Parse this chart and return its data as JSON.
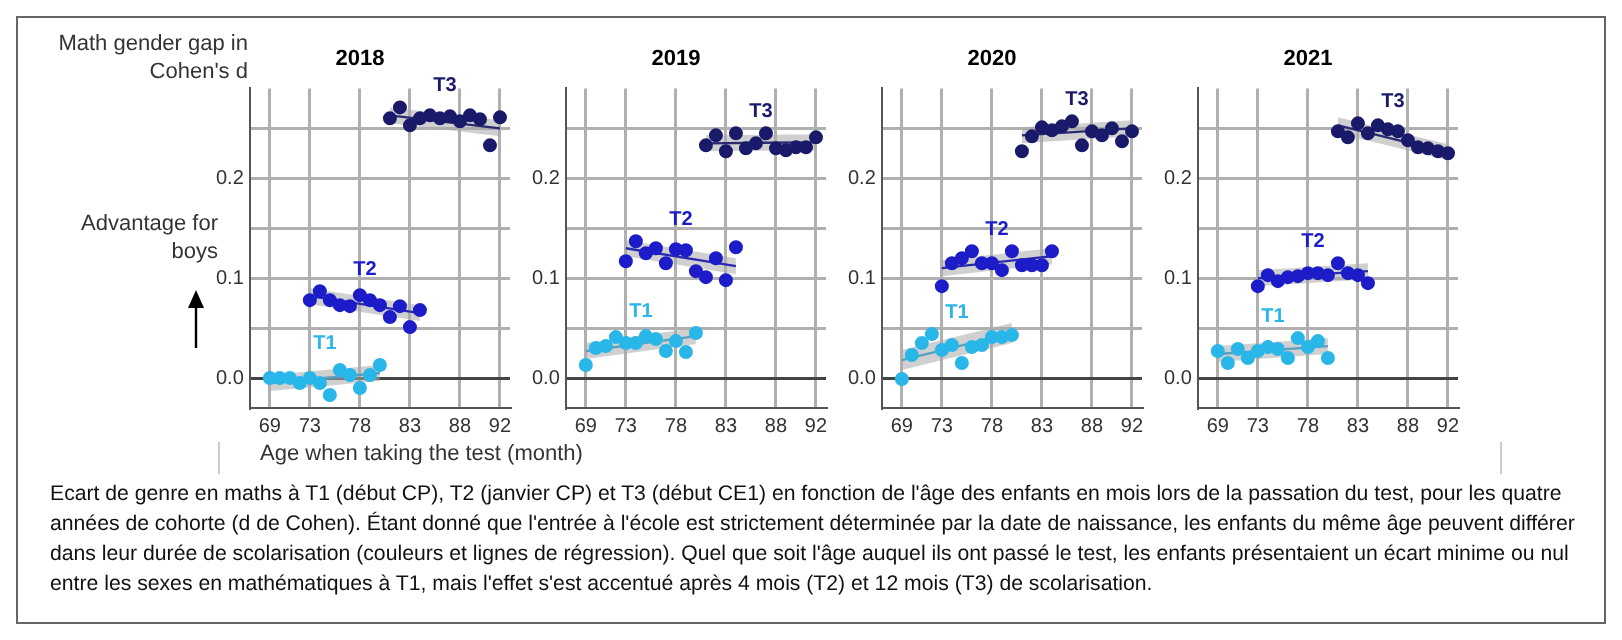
{
  "chart_data": [
    {
      "type": "scatter",
      "title": "2018",
      "ylabel": "Math gender gap in Cohen's d",
      "xlabel": "Age when taking the test (month)",
      "annotations": [
        "Advantage for boys",
        "Ecart de genre en maths à T1 (début CP), T2 (janvier CP) et T3 (début CE1) en fonction de l'âge des enfants en mois lors de la passation du test, pour les quatre années de cohorte (d de Cohen). Étant donné que l'entrée à l'école est strictement déterminée par la date de naissance, les enfants du même âge peuvent différer dans leur durée de scolarisation (couleurs et lignes de régression). Quel que soit l'âge auquel ils ont passé le test, les enfants présentaient un écart minime ou nul entre les sexes en mathématiques à T1, mais l'effet s'est accentué après 4 mois (T2) et 12 mois (T3) de scolarisation."
      ],
      "xlim": [
        67,
        93
      ],
      "ylim": [
        -0.03,
        0.29
      ],
      "xticks": [
        69,
        73,
        78,
        83,
        88,
        92
      ],
      "yticks": [
        {
          "value": 0,
          "label": "0.0"
        },
        {
          "value": 0.05,
          "label": null
        },
        {
          "value": 0.1,
          "label": "0.1"
        },
        {
          "value": 0.15,
          "label": null
        },
        {
          "value": 0.2,
          "label": "0.2"
        },
        {
          "value": 0.25,
          "label": null
        }
      ],
      "grid": true,
      "marker": "circle",
      "series": [
        {
          "type": "line",
          "marker": "none",
          "color": "#5a9fc0",
          "x": [
            69,
            80
          ],
          "values": [
            -0.005,
            0.005
          ],
          "lower": [
            -0.013,
            -0.003
          ],
          "upper": [
            0.003,
            0.013
          ]
        },
        {
          "type": "line",
          "marker": "none",
          "color": "#2a2ab0",
          "x": [
            73,
            84
          ],
          "values": [
            0.082,
            0.065
          ],
          "lower": [
            0.074,
            0.057
          ],
          "upper": [
            0.09,
            0.073
          ]
        },
        {
          "type": "line",
          "marker": "none",
          "color": "#2a2a70",
          "x": [
            81,
            92
          ],
          "values": [
            0.263,
            0.25
          ],
          "lower": [
            0.255,
            0.242
          ],
          "upper": [
            0.271,
            0.258
          ]
        },
        {
          "name": "T1",
          "color": "#29b6e8",
          "x": [
            69,
            70,
            71,
            72,
            73,
            74,
            75,
            76,
            77,
            78,
            79,
            80
          ],
          "values": [
            0.0,
            0.0,
            0.0,
            -0.005,
            0.0,
            -0.005,
            -0.017,
            0.008,
            0.003,
            -0.01,
            0.003,
            0.013
          ]
        },
        {
          "name": "T2",
          "color": "#1c1cc8",
          "x": [
            73,
            74,
            75,
            76,
            77,
            78,
            79,
            80,
            81,
            82,
            83,
            84
          ],
          "values": [
            0.078,
            0.087,
            0.078,
            0.073,
            0.072,
            0.083,
            0.078,
            0.073,
            0.061,
            0.072,
            0.051,
            0.068
          ]
        },
        {
          "name": "T3",
          "color": "#1a1a6a",
          "x": [
            81,
            82,
            83,
            84,
            85,
            86,
            87,
            88,
            89,
            90,
            91,
            92
          ],
          "values": [
            0.26,
            0.271,
            0.253,
            0.26,
            0.263,
            0.26,
            0.262,
            0.257,
            0.263,
            0.259,
            0.233,
            0.261
          ]
        }
      ]
    },
    {
      "type": "scatter",
      "title": "2019",
      "xlim": [
        67,
        93
      ],
      "ylim": [
        -0.03,
        0.29
      ],
      "xticks": [
        69,
        73,
        78,
        83,
        88,
        92
      ],
      "yticks": [
        {
          "value": 0,
          "label": "0.0"
        },
        {
          "value": 0.05,
          "label": null
        },
        {
          "value": 0.1,
          "label": "0.1"
        },
        {
          "value": 0.15,
          "label": null
        },
        {
          "value": 0.2,
          "label": "0.2"
        },
        {
          "value": 0.25,
          "label": null
        }
      ],
      "grid": true,
      "marker": "circle",
      "series": [
        {
          "type": "line",
          "marker": "none",
          "color": "#5a9fc0",
          "x": [
            69,
            80
          ],
          "values": [
            0.027,
            0.042
          ],
          "lower": [
            0.019,
            0.034
          ],
          "upper": [
            0.035,
            0.05
          ]
        },
        {
          "type": "line",
          "marker": "none",
          "color": "#2a2ab0",
          "x": [
            73,
            84
          ],
          "values": [
            0.13,
            0.112
          ],
          "lower": [
            0.122,
            0.104
          ],
          "upper": [
            0.138,
            0.12
          ]
        },
        {
          "type": "line",
          "marker": "none",
          "color": "#2a2a70",
          "x": [
            81,
            92
          ],
          "values": [
            0.235,
            0.236
          ],
          "lower": [
            0.227,
            0.228
          ],
          "upper": [
            0.243,
            0.244
          ]
        },
        {
          "name": "T1",
          "color": "#29b6e8",
          "x": [
            69,
            70,
            71,
            72,
            73,
            74,
            75,
            76,
            77,
            78,
            79,
            80
          ],
          "values": [
            0.013,
            0.03,
            0.032,
            0.041,
            0.035,
            0.035,
            0.042,
            0.039,
            0.027,
            0.037,
            0.026,
            0.045
          ]
        },
        {
          "name": "T2",
          "color": "#1c1cc8",
          "x": [
            73,
            74,
            75,
            76,
            77,
            78,
            79,
            80,
            81,
            82,
            83,
            84
          ],
          "values": [
            0.117,
            0.137,
            0.125,
            0.13,
            0.115,
            0.129,
            0.128,
            0.107,
            0.101,
            0.12,
            0.098,
            0.131
          ]
        },
        {
          "name": "T3",
          "color": "#1a1a6a",
          "x": [
            81,
            82,
            83,
            84,
            85,
            86,
            87,
            88,
            89,
            90,
            91,
            92
          ],
          "values": [
            0.233,
            0.243,
            0.227,
            0.245,
            0.23,
            0.235,
            0.245,
            0.23,
            0.228,
            0.231,
            0.231,
            0.241
          ]
        }
      ]
    },
    {
      "type": "scatter",
      "title": "2020",
      "xlim": [
        67,
        93
      ],
      "ylim": [
        -0.03,
        0.29
      ],
      "xticks": [
        69,
        73,
        78,
        83,
        88,
        92
      ],
      "yticks": [
        {
          "value": 0,
          "label": "0.0"
        },
        {
          "value": 0.05,
          "label": null
        },
        {
          "value": 0.1,
          "label": "0.1"
        },
        {
          "value": 0.15,
          "label": null
        },
        {
          "value": 0.2,
          "label": "0.2"
        },
        {
          "value": 0.25,
          "label": null
        }
      ],
      "grid": true,
      "marker": "circle",
      "series": [
        {
          "type": "line",
          "marker": "none",
          "color": "#5a9fc0",
          "x": [
            69,
            80
          ],
          "values": [
            0.018,
            0.045
          ],
          "lower": [
            0.008,
            0.035
          ],
          "upper": [
            0.028,
            0.055
          ]
        },
        {
          "type": "line",
          "marker": "none",
          "color": "#2a2ab0",
          "x": [
            73,
            84
          ],
          "values": [
            0.11,
            0.122
          ],
          "lower": [
            0.102,
            0.114
          ],
          "upper": [
            0.118,
            0.13
          ]
        },
        {
          "type": "line",
          "marker": "none",
          "color": "#2a2a70",
          "x": [
            81,
            92
          ],
          "values": [
            0.243,
            0.25
          ],
          "lower": [
            0.235,
            0.242
          ],
          "upper": [
            0.251,
            0.258
          ]
        },
        {
          "name": "T1",
          "color": "#29b6e8",
          "x": [
            69,
            70,
            71,
            72,
            73,
            74,
            75,
            76,
            77,
            78,
            79,
            80
          ],
          "values": [
            -0.001,
            0.023,
            0.035,
            0.044,
            0.028,
            0.033,
            0.015,
            0.031,
            0.033,
            0.041,
            0.041,
            0.043
          ]
        },
        {
          "name": "T2",
          "color": "#1c1cc8",
          "x": [
            73,
            74,
            75,
            76,
            77,
            78,
            79,
            80,
            81,
            82,
            83,
            84
          ],
          "values": [
            0.092,
            0.115,
            0.12,
            0.127,
            0.115,
            0.115,
            0.108,
            0.127,
            0.113,
            0.113,
            0.113,
            0.127
          ]
        },
        {
          "name": "T3",
          "color": "#1a1a6a",
          "x": [
            81,
            82,
            83,
            84,
            85,
            86,
            87,
            88,
            89,
            90,
            91,
            92
          ],
          "values": [
            0.227,
            0.242,
            0.251,
            0.248,
            0.252,
            0.257,
            0.233,
            0.247,
            0.243,
            0.25,
            0.237,
            0.247
          ]
        }
      ]
    },
    {
      "type": "scatter",
      "title": "2021",
      "xlim": [
        67,
        93
      ],
      "ylim": [
        -0.03,
        0.29
      ],
      "xticks": [
        69,
        73,
        78,
        83,
        88,
        92
      ],
      "yticks": [
        {
          "value": 0,
          "label": "0.0"
        },
        {
          "value": 0.05,
          "label": null
        },
        {
          "value": 0.1,
          "label": "0.1"
        },
        {
          "value": 0.15,
          "label": null
        },
        {
          "value": 0.2,
          "label": "0.2"
        },
        {
          "value": 0.25,
          "label": null
        }
      ],
      "grid": true,
      "marker": "circle",
      "series": [
        {
          "type": "line",
          "marker": "none",
          "color": "#5a9fc0",
          "x": [
            69,
            80
          ],
          "values": [
            0.024,
            0.032
          ],
          "lower": [
            0.016,
            0.024
          ],
          "upper": [
            0.032,
            0.04
          ]
        },
        {
          "type": "line",
          "marker": "none",
          "color": "#2a2ab0",
          "x": [
            73,
            84
          ],
          "values": [
            0.1,
            0.107
          ],
          "lower": [
            0.092,
            0.099
          ],
          "upper": [
            0.108,
            0.115
          ]
        },
        {
          "type": "line",
          "marker": "none",
          "color": "#2a2a70",
          "x": [
            81,
            92
          ],
          "values": [
            0.253,
            0.226
          ],
          "lower": [
            0.245,
            0.218
          ],
          "upper": [
            0.261,
            0.234
          ]
        },
        {
          "name": "T1",
          "color": "#29b6e8",
          "x": [
            69,
            70,
            71,
            72,
            73,
            74,
            75,
            76,
            77,
            78,
            79,
            80
          ],
          "values": [
            0.027,
            0.015,
            0.029,
            0.02,
            0.027,
            0.031,
            0.029,
            0.02,
            0.04,
            0.031,
            0.037,
            0.02
          ]
        },
        {
          "name": "T2",
          "color": "#1c1cc8",
          "x": [
            73,
            74,
            75,
            76,
            77,
            78,
            79,
            80,
            81,
            82,
            83,
            84
          ],
          "values": [
            0.092,
            0.103,
            0.097,
            0.101,
            0.102,
            0.105,
            0.105,
            0.103,
            0.115,
            0.105,
            0.103,
            0.095
          ]
        },
        {
          "name": "T3",
          "color": "#1a1a6a",
          "x": [
            81,
            82,
            83,
            84,
            85,
            86,
            87,
            88,
            89,
            90,
            91,
            92
          ],
          "values": [
            0.247,
            0.241,
            0.255,
            0.245,
            0.253,
            0.249,
            0.247,
            0.238,
            0.231,
            0.23,
            0.227,
            0.225
          ]
        }
      ]
    }
  ]
}
